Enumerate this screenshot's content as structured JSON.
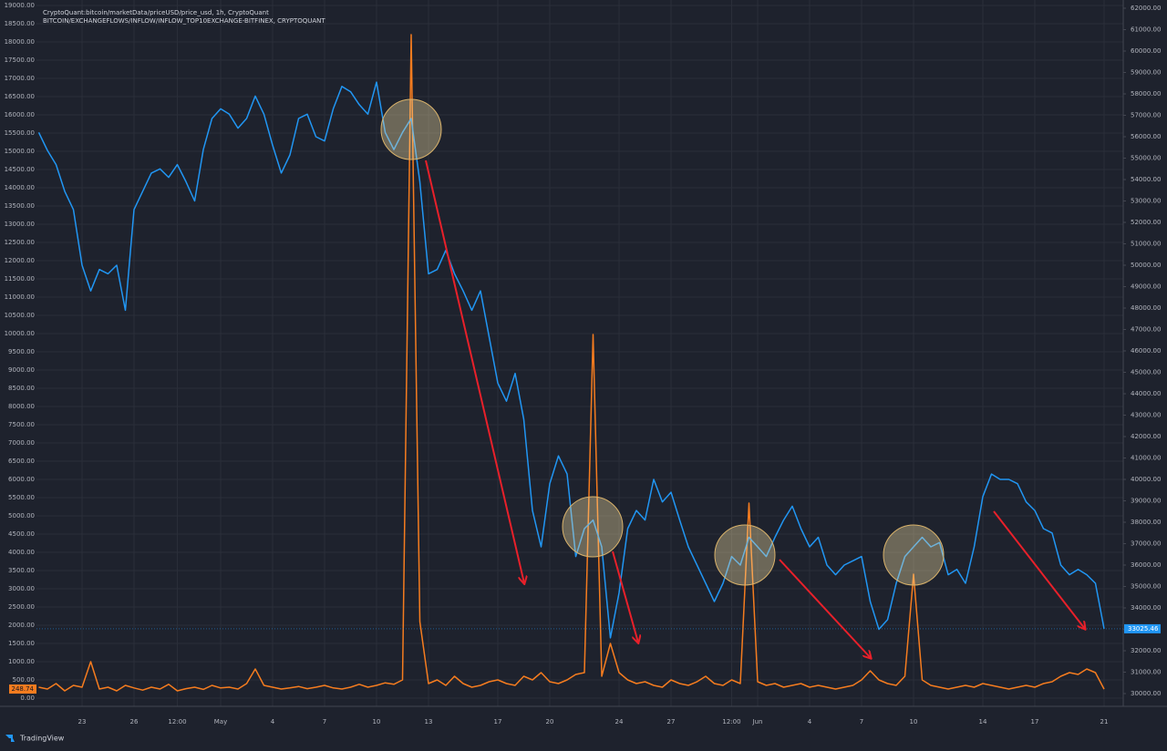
{
  "chart_data": {
    "type": "line",
    "branding": "TradingView",
    "categories": [
      null,
      null,
      null,
      null,
      null,
      "23",
      null,
      null,
      null,
      null,
      null,
      "26",
      null,
      null,
      null,
      null,
      "12:00",
      null,
      null,
      null,
      null,
      "May",
      null,
      null,
      null,
      null,
      null,
      "4",
      null,
      null,
      null,
      null,
      null,
      "7",
      null,
      null,
      null,
      null,
      null,
      "10",
      null,
      null,
      null,
      null,
      null,
      "13",
      null,
      null,
      null,
      null,
      null,
      null,
      null,
      "17",
      null,
      null,
      null,
      null,
      null,
      "20",
      null,
      null,
      null,
      null,
      null,
      null,
      null,
      "24",
      null,
      null,
      null,
      null,
      null,
      "27",
      null,
      null,
      null,
      null,
      null,
      null,
      "12:00",
      null,
      null,
      "Jun",
      null,
      null,
      null,
      null,
      null,
      "4",
      null,
      null,
      null,
      null,
      null,
      "7",
      null,
      null,
      null,
      null,
      null,
      "10",
      null,
      null,
      null,
      null,
      null,
      null,
      null,
      "14",
      null,
      null,
      null,
      null,
      null,
      "17",
      null,
      null,
      null,
      null,
      null,
      null,
      null,
      "21"
    ],
    "series": [
      {
        "name": "BITCOIN/EXCHANGEFLOWS/INFLOW/INFLOW_TOP10EXCHANGE-BITFINEX, CRYPTOQUANT",
        "color": "#f57c1f",
        "axis": "y",
        "values": [
          300,
          250,
          400,
          200,
          350,
          300,
          1000,
          250,
          300,
          200,
          350,
          280,
          220,
          300,
          250,
          380,
          200,
          260,
          300,
          240,
          350,
          280,
          300,
          250,
          400,
          800,
          350,
          300,
          250,
          280,
          320,
          260,
          300,
          350,
          280,
          250,
          300,
          380,
          300,
          350,
          420,
          380,
          500,
          18200,
          2100,
          400,
          500,
          350,
          600,
          400,
          300,
          350,
          450,
          500,
          400,
          350,
          600,
          500,
          700,
          450,
          400,
          500,
          650,
          700,
          9975,
          600,
          1500,
          700,
          500,
          400,
          450,
          350,
          300,
          500,
          400,
          350,
          450,
          600,
          400,
          350,
          500,
          400,
          5350,
          450,
          350,
          400,
          300,
          350,
          400,
          300,
          350,
          300,
          250,
          300,
          350,
          500,
          750,
          500,
          400,
          350,
          600,
          3400,
          500,
          350,
          300,
          250,
          300,
          350,
          300,
          400,
          350,
          300,
          250,
          300,
          350,
          300,
          400,
          450,
          600,
          700,
          650,
          800,
          700,
          248.74
        ]
      },
      {
        "name": "CryptoQuant:bitcoin/marketData/priceUSD/price_usd, 1h, CryptoQuant",
        "color": "#2196f3",
        "axis": "y2",
        "values": [
          56200,
          55360,
          54700,
          53450,
          52600,
          50000,
          48800,
          49800,
          49600,
          50000,
          47900,
          52600,
          53450,
          54300,
          54500,
          54100,
          54700,
          53900,
          53000,
          55400,
          56850,
          57300,
          57050,
          56400,
          56850,
          57900,
          57050,
          55600,
          54300,
          55150,
          56850,
          57050,
          56000,
          55800,
          57300,
          58350,
          58100,
          57500,
          57050,
          58550,
          56200,
          55400,
          56200,
          56850,
          53900,
          49600,
          49800,
          50700,
          49600,
          48800,
          47900,
          48800,
          46650,
          44500,
          43650,
          44950,
          42800,
          38550,
          36850,
          39800,
          41100,
          40250,
          36400,
          37700,
          38100,
          36850,
          32600,
          34700,
          37700,
          38550,
          38100,
          40000,
          38950,
          39400,
          38100,
          36850,
          36000,
          35150,
          34300,
          35150,
          36400,
          36000,
          37300,
          36850,
          36400,
          37300,
          38100,
          38750,
          37700,
          36850,
          37300,
          36000,
          35550,
          36000,
          36200,
          36400,
          34300,
          33000,
          33450,
          35150,
          36400,
          36850,
          37300,
          36850,
          37050,
          35550,
          35800,
          35150,
          36850,
          39200,
          40250,
          40000,
          40000,
          39800,
          38950,
          38550,
          37700,
          37500,
          36000,
          35550,
          35800,
          35550,
          35150,
          33025.46
        ]
      }
    ],
    "ylim": [
      0,
      19000
    ],
    "yticks": [
      {
        "value": 0,
        "label": "0.00"
      },
      {
        "value": 500,
        "label": "500.00"
      },
      {
        "value": 1000,
        "label": "1000.00"
      },
      {
        "value": 1500,
        "label": "1500.00"
      },
      {
        "value": 2000,
        "label": "2000.00"
      },
      {
        "value": 2500,
        "label": "2500.00"
      },
      {
        "value": 3000,
        "label": "3000.00"
      },
      {
        "value": 3500,
        "label": "3500.00"
      },
      {
        "value": 4000,
        "label": "4000.00"
      },
      {
        "value": 4500,
        "label": "4500.00"
      },
      {
        "value": 5000,
        "label": "5000.00"
      },
      {
        "value": 5500,
        "label": "5500.00"
      },
      {
        "value": 6000,
        "label": "6000.00"
      },
      {
        "value": 6500,
        "label": "6500.00"
      },
      {
        "value": 7000,
        "label": "7000.00"
      },
      {
        "value": 7500,
        "label": "7500.00"
      },
      {
        "value": 8000,
        "label": "8000.00"
      },
      {
        "value": 8500,
        "label": "8500.00"
      },
      {
        "value": 9000,
        "label": "9000.00"
      },
      {
        "value": 9500,
        "label": "9500.00"
      },
      {
        "value": 10000,
        "label": "10000.00"
      },
      {
        "value": 10500,
        "label": "10500.00"
      },
      {
        "value": 11000,
        "label": "11000.00"
      },
      {
        "value": 11500,
        "label": "11500.00"
      },
      {
        "value": 12000,
        "label": "12000.00"
      },
      {
        "value": 12500,
        "label": "12500.00"
      },
      {
        "value": 13000,
        "label": "13000.00"
      },
      {
        "value": 13500,
        "label": "13500.00"
      },
      {
        "value": 14000,
        "label": "14000.00"
      },
      {
        "value": 14500,
        "label": "14500.00"
      },
      {
        "value": 15000,
        "label": "15000.00"
      },
      {
        "value": 15500,
        "label": "15500.00"
      },
      {
        "value": 16000,
        "label": "16000.00"
      },
      {
        "value": 16500,
        "label": "16500.00"
      },
      {
        "value": 17000,
        "label": "17000.00"
      },
      {
        "value": 17500,
        "label": "17500.00"
      },
      {
        "value": 18000,
        "label": "18000.00"
      },
      {
        "value": 18500,
        "label": "18500.00"
      },
      {
        "value": 19000,
        "label": "19000.00"
      }
    ],
    "y2lim": [
      30000,
      62000
    ],
    "y2ticks": [
      {
        "value": 30000,
        "label": "30000.00"
      },
      {
        "value": 31000,
        "label": "31000.00"
      },
      {
        "value": 32000,
        "label": "32000.00"
      },
      {
        "value": 33000,
        "label": "33000.00"
      },
      {
        "value": 34000,
        "label": "34000.00"
      },
      {
        "value": 35000,
        "label": "35000.00"
      },
      {
        "value": 36000,
        "label": "36000.00"
      },
      {
        "value": 37000,
        "label": "37000.00"
      },
      {
        "value": 38000,
        "label": "38000.00"
      },
      {
        "value": 39000,
        "label": "39000.00"
      },
      {
        "value": 40000,
        "label": "40000.00"
      },
      {
        "value": 41000,
        "label": "41000.00"
      },
      {
        "value": 42000,
        "label": "42000.00"
      },
      {
        "value": 43000,
        "label": "43000.00"
      },
      {
        "value": 44000,
        "label": "44000.00"
      },
      {
        "value": 45000,
        "label": "45000.00"
      },
      {
        "value": 46000,
        "label": "46000.00"
      },
      {
        "value": 47000,
        "label": "47000.00"
      },
      {
        "value": 48000,
        "label": "48000.00"
      },
      {
        "value": 49000,
        "label": "49000.00"
      },
      {
        "value": 50000,
        "label": "50000.00"
      },
      {
        "value": 51000,
        "label": "51000.00"
      },
      {
        "value": 52000,
        "label": "52000.00"
      },
      {
        "value": 53000,
        "label": "53000.00"
      },
      {
        "value": 54000,
        "label": "54000.00"
      },
      {
        "value": 55000,
        "label": "55000.00"
      },
      {
        "value": 56000,
        "label": "56000.00"
      },
      {
        "value": 57000,
        "label": "57000.00"
      },
      {
        "value": 58000,
        "label": "58000.00"
      },
      {
        "value": 59000,
        "label": "59000.00"
      },
      {
        "value": 60000,
        "label": "60000.00"
      },
      {
        "value": 61000,
        "label": "61000.00"
      },
      {
        "value": 62000,
        "label": "62000.00"
      }
    ],
    "grid": true
  }
}
